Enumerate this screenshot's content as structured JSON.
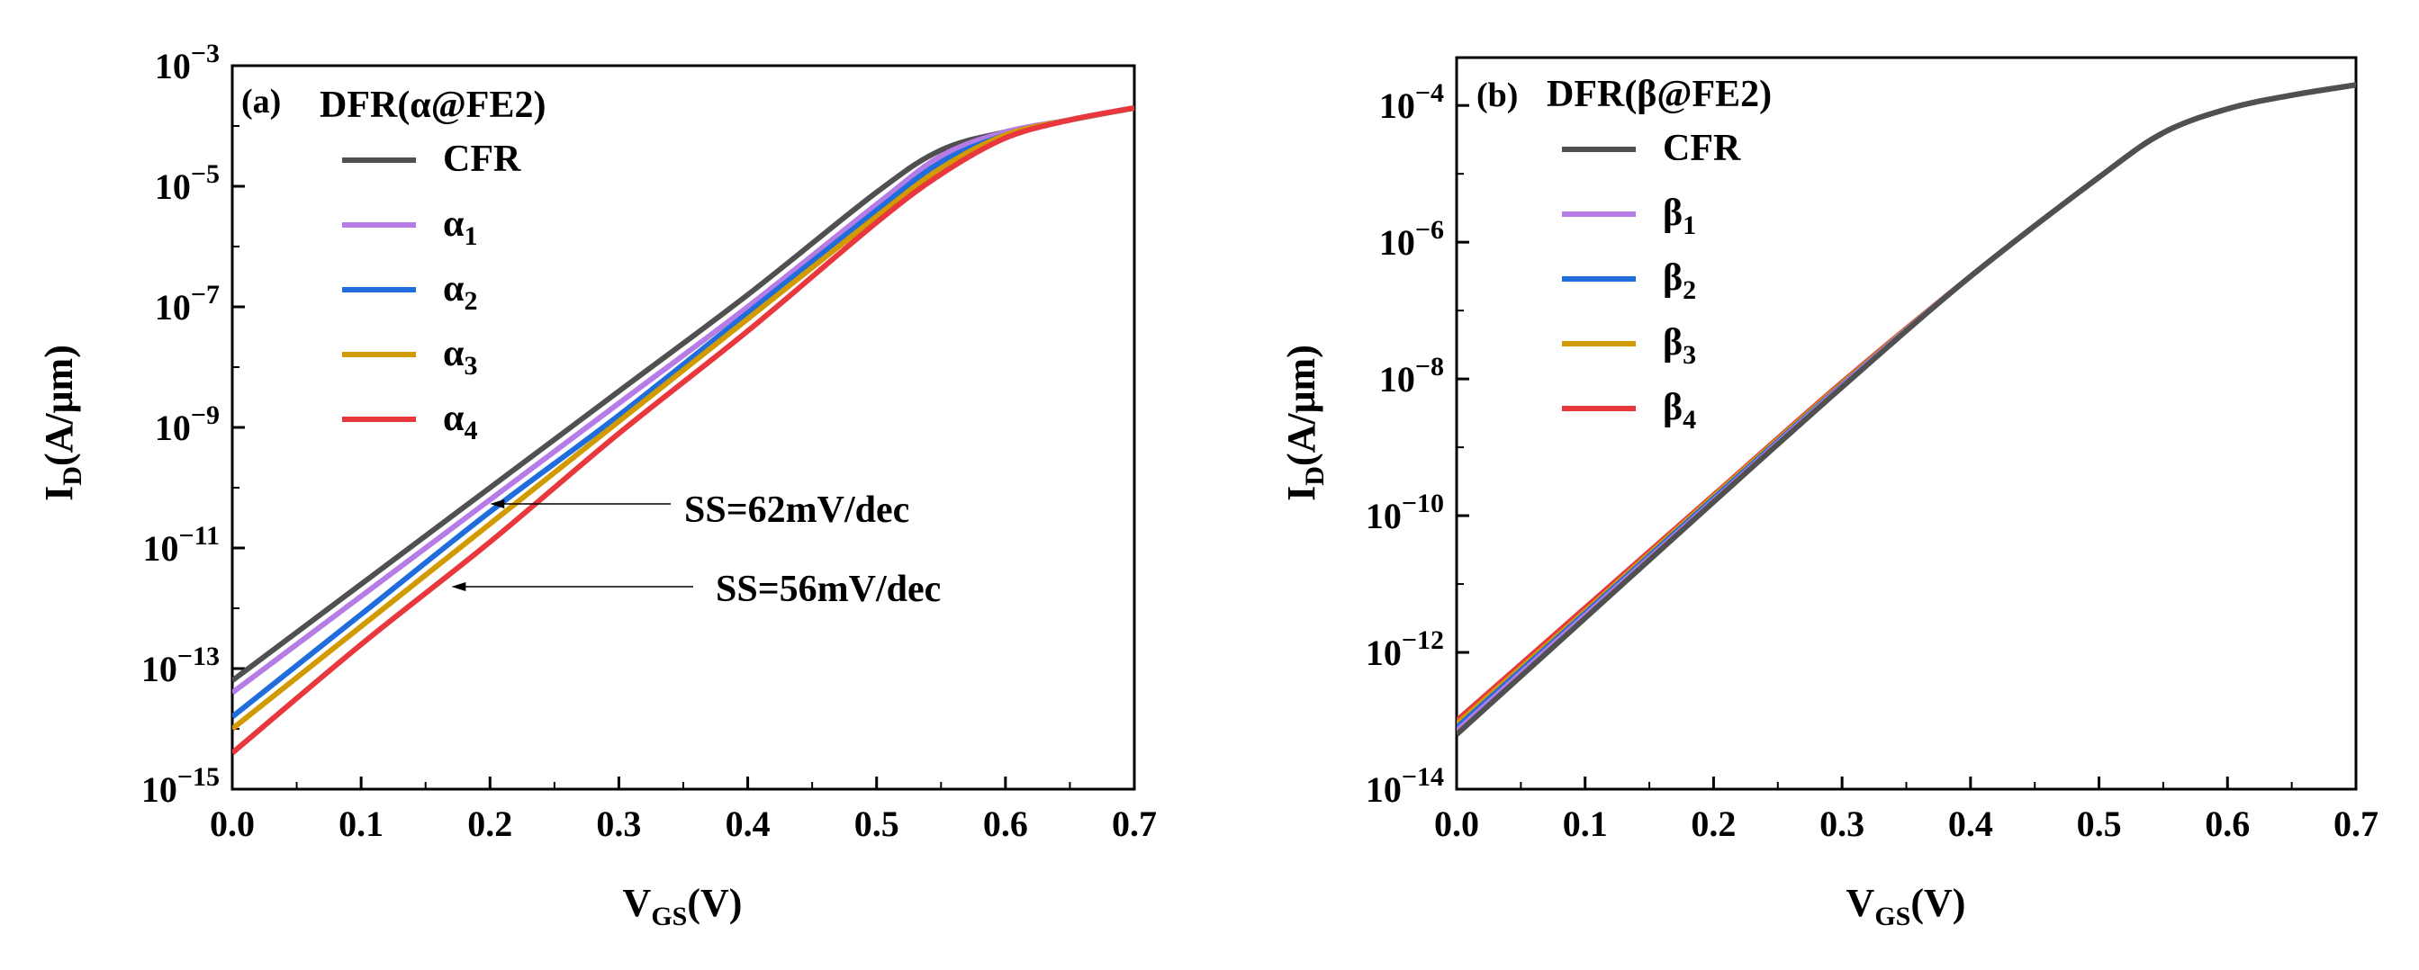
{
  "chart_data": [
    {
      "type": "line",
      "panel_label": "(a)",
      "legend_title": "DFR(α@FE2)",
      "xlabel_main": "V",
      "xlabel_sub": "GS",
      "xlabel_tail": "(V)",
      "ylabel_main": "I",
      "ylabel_sub": "D",
      "ylabel_tail": "(A/μm)",
      "xlim": [
        0.0,
        0.7
      ],
      "ylim_log10": [
        -15,
        -3
      ],
      "x_ticks": [
        "0.0",
        "0.1",
        "0.2",
        "0.3",
        "0.4",
        "0.5",
        "0.6",
        "0.7"
      ],
      "y_ticks": [
        {
          "base": "10",
          "exp": "−15"
        },
        {
          "base": "10",
          "exp": "−13"
        },
        {
          "base": "10",
          "exp": "−11"
        },
        {
          "base": "10",
          "exp": "−9"
        },
        {
          "base": "10",
          "exp": "−7"
        },
        {
          "base": "10",
          "exp": "−5"
        },
        {
          "base": "10",
          "exp": "−3"
        }
      ],
      "annotations": [
        {
          "text": "SS=62mV/dec",
          "arrow_to": [
            0.2,
            -10.2
          ]
        },
        {
          "text": "SS=56mV/dec",
          "arrow_to": [
            0.17,
            -11.7
          ]
        }
      ],
      "series": [
        {
          "name": "CFR",
          "sub": "",
          "color": "#505050",
          "x": [
            0.0,
            0.1,
            0.2,
            0.3,
            0.4,
            0.5,
            0.55,
            0.6,
            0.65,
            0.7
          ],
          "log10_y": [
            -13.2,
            -11.6,
            -10.0,
            -8.4,
            -6.8,
            -5.1,
            -4.4,
            -4.1,
            -3.9,
            -3.7
          ]
        },
        {
          "name": "α",
          "sub": "1",
          "color": "#b57be6",
          "x": [
            0.0,
            0.1,
            0.2,
            0.3,
            0.4,
            0.5,
            0.55,
            0.6,
            0.65,
            0.7
          ],
          "log10_y": [
            -13.4,
            -11.8,
            -10.2,
            -8.6,
            -7.0,
            -5.3,
            -4.5,
            -4.1,
            -3.9,
            -3.7
          ]
        },
        {
          "name": "α",
          "sub": "2",
          "color": "#1f6ddd",
          "x": [
            0.0,
            0.1,
            0.2,
            0.3,
            0.4,
            0.5,
            0.55,
            0.6,
            0.65,
            0.7
          ],
          "log10_y": [
            -13.8,
            -12.1,
            -10.4,
            -8.8,
            -7.1,
            -5.4,
            -4.6,
            -4.15,
            -3.9,
            -3.7
          ]
        },
        {
          "name": "α",
          "sub": "3",
          "color": "#d19a00",
          "x": [
            0.0,
            0.1,
            0.2,
            0.3,
            0.4,
            0.5,
            0.55,
            0.6,
            0.65,
            0.7
          ],
          "log10_y": [
            -14.0,
            -12.3,
            -10.6,
            -8.9,
            -7.2,
            -5.5,
            -4.7,
            -4.15,
            -3.9,
            -3.7
          ]
        },
        {
          "name": "α",
          "sub": "4",
          "color": "#e8383d",
          "x": [
            0.0,
            0.1,
            0.2,
            0.3,
            0.4,
            0.5,
            0.55,
            0.6,
            0.65,
            0.7
          ],
          "log10_y": [
            -14.4,
            -12.6,
            -10.9,
            -9.1,
            -7.4,
            -5.6,
            -4.8,
            -4.2,
            -3.9,
            -3.7
          ]
        }
      ]
    },
    {
      "type": "line",
      "panel_label": "(b)",
      "legend_title": "DFR(β@FE2)",
      "xlabel_main": "V",
      "xlabel_sub": "GS",
      "xlabel_tail": "(V)",
      "ylabel_main": "I",
      "ylabel_sub": "D",
      "ylabel_tail": "(A/μm)",
      "xlim": [
        0.0,
        0.7
      ],
      "ylim_log10": [
        -14,
        -3.3
      ],
      "x_ticks": [
        "0.0",
        "0.1",
        "0.2",
        "0.3",
        "0.4",
        "0.5",
        "0.6",
        "0.7"
      ],
      "y_ticks": [
        {
          "base": "10",
          "exp": "−14"
        },
        {
          "base": "10",
          "exp": "−12"
        },
        {
          "base": "10",
          "exp": "−10"
        },
        {
          "base": "10",
          "exp": "−8"
        },
        {
          "base": "10",
          "exp": "−6"
        },
        {
          "base": "10",
          "exp": "−4"
        }
      ],
      "annotations": [],
      "series": [
        {
          "name": "β",
          "sub": "4",
          "color": "#e8383d",
          "x": [
            0.0,
            0.1,
            0.2,
            0.3,
            0.4,
            0.5,
            0.55,
            0.6,
            0.65,
            0.7
          ],
          "log10_y": [
            -13.0,
            -11.35,
            -9.7,
            -8.05,
            -6.5,
            -5.05,
            -4.4,
            -4.05,
            -3.85,
            -3.7
          ]
        },
        {
          "name": "β",
          "sub": "3",
          "color": "#d19a00",
          "x": [
            0.0,
            0.1,
            0.2,
            0.3,
            0.4,
            0.5,
            0.55,
            0.6,
            0.65,
            0.7
          ],
          "log10_y": [
            -13.05,
            -11.4,
            -9.72,
            -8.07,
            -6.5,
            -5.05,
            -4.4,
            -4.05,
            -3.85,
            -3.7
          ]
        },
        {
          "name": "β",
          "sub": "2",
          "color": "#1f6ddd",
          "x": [
            0.0,
            0.1,
            0.2,
            0.3,
            0.4,
            0.5,
            0.55,
            0.6,
            0.65,
            0.7
          ],
          "log10_y": [
            -13.1,
            -11.43,
            -9.75,
            -8.09,
            -6.5,
            -5.05,
            -4.4,
            -4.05,
            -3.85,
            -3.7
          ]
        },
        {
          "name": "β",
          "sub": "1",
          "color": "#b57be6",
          "x": [
            0.0,
            0.1,
            0.2,
            0.3,
            0.4,
            0.5,
            0.55,
            0.6,
            0.65,
            0.7
          ],
          "log10_y": [
            -13.15,
            -11.46,
            -9.78,
            -8.1,
            -6.5,
            -5.05,
            -4.4,
            -4.05,
            -3.85,
            -3.7
          ]
        },
        {
          "name": "CFR",
          "sub": "",
          "color": "#505050",
          "x": [
            0.0,
            0.1,
            0.2,
            0.3,
            0.4,
            0.5,
            0.55,
            0.6,
            0.65,
            0.7
          ],
          "log10_y": [
            -13.2,
            -11.5,
            -9.8,
            -8.12,
            -6.5,
            -5.05,
            -4.4,
            -4.05,
            -3.85,
            -3.7
          ]
        }
      ],
      "legend_order": [
        "CFR",
        "β1",
        "β2",
        "β3",
        "β4"
      ]
    }
  ]
}
